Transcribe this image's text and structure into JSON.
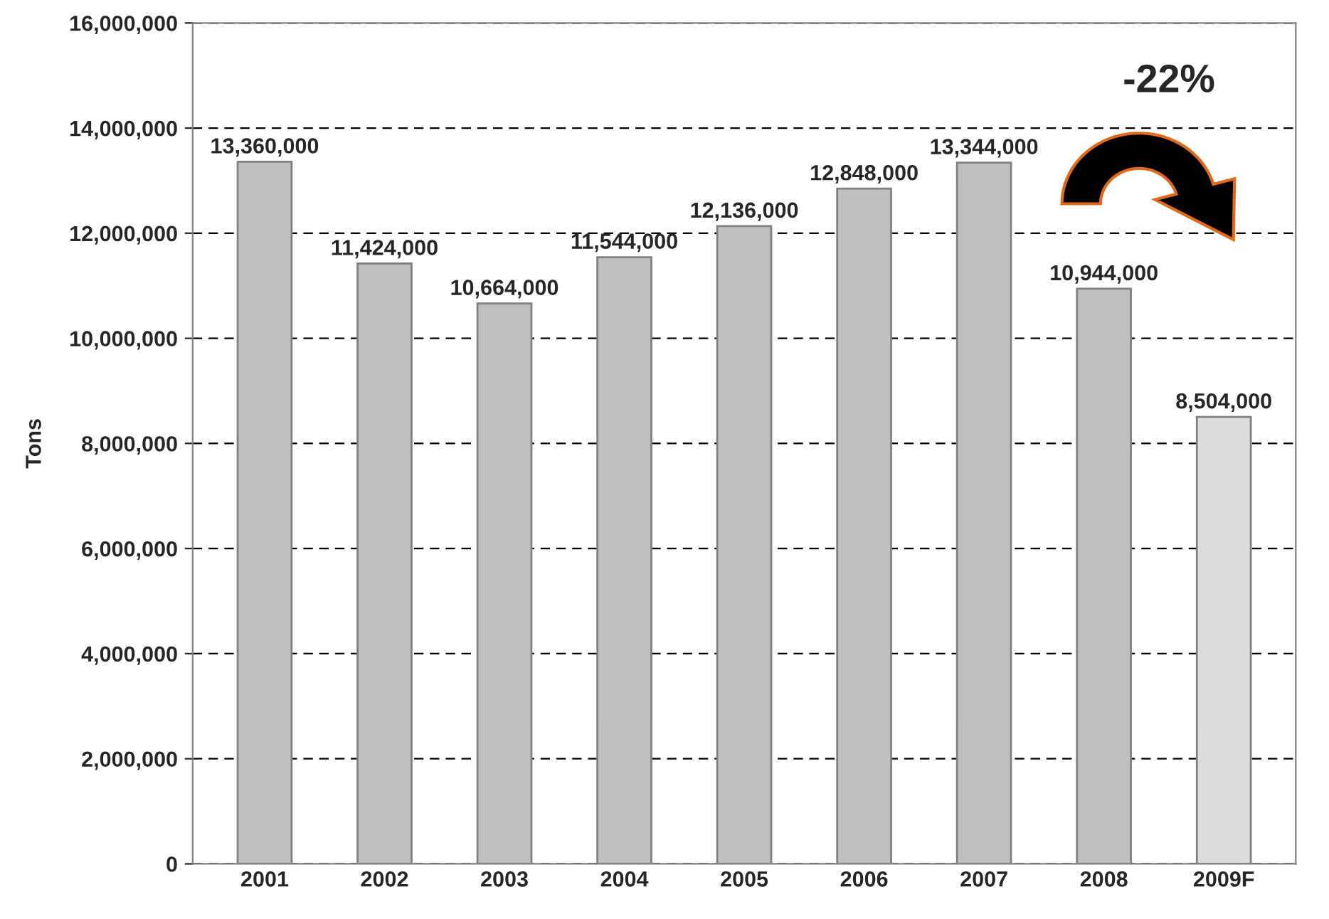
{
  "chart_data": {
    "type": "bar",
    "ylabel": "Tons",
    "categories": [
      "2001",
      "2002",
      "2003",
      "2004",
      "2005",
      "2006",
      "2007",
      "2008",
      "2009F"
    ],
    "values": [
      13360000,
      11424000,
      10664000,
      11544000,
      12136000,
      12848000,
      13344000,
      10944000,
      8504000
    ],
    "colors": [
      "#c0c0c0",
      "#c0c0c0",
      "#c0c0c0",
      "#c0c0c0",
      "#c0c0c0",
      "#c0c0c0",
      "#c0c0c0",
      "#c0c0c0",
      "#dcdcdc"
    ],
    "value_labels": [
      "13,360,000",
      "11,424,000",
      "10,664,000",
      "11,544,000",
      "12,136,000",
      "12,848,000",
      "13,344,000",
      "10,944,000",
      "8,504,000"
    ],
    "ylim": [
      0,
      16000000
    ],
    "yticks": [
      {
        "value": 0,
        "label": "0"
      },
      {
        "value": 2000000,
        "label": "2,000,000"
      },
      {
        "value": 4000000,
        "label": "4,000,000"
      },
      {
        "value": 6000000,
        "label": "6,000,000"
      },
      {
        "value": 8000000,
        "label": "8,000,000"
      },
      {
        "value": 10000000,
        "label": "10,000,000"
      },
      {
        "value": 12000000,
        "label": "12,000,000"
      },
      {
        "value": 14000000,
        "label": "14,000,000"
      },
      {
        "value": 16000000,
        "label": "16,000,000"
      }
    ],
    "grid": "y",
    "annotations": [
      "-22%"
    ]
  }
}
